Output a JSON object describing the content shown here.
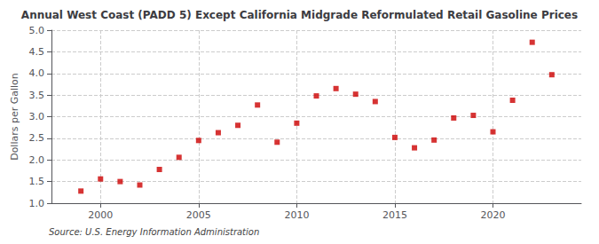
{
  "chart_data": {
    "type": "scatter",
    "title": "Annual West Coast (PADD 5) Except California Midgrade Reformulated Retail Gasoline Prices",
    "ylabel": "Dollars per Gallon",
    "annotations": [
      "Source: U.S. Energy Information Administration"
    ],
    "x": [
      1999,
      2000,
      2001,
      2002,
      2003,
      2004,
      2005,
      2006,
      2007,
      2008,
      2009,
      2010,
      2011,
      2012,
      2013,
      2014,
      2015,
      2016,
      2017,
      2018,
      2019,
      2020,
      2021,
      2022,
      2023
    ],
    "values": [
      1.28,
      1.56,
      1.5,
      1.42,
      1.78,
      2.06,
      2.45,
      2.63,
      2.8,
      3.27,
      2.41,
      2.85,
      3.48,
      3.65,
      3.52,
      3.35,
      2.52,
      2.28,
      2.46,
      2.97,
      3.03,
      2.65,
      3.38,
      4.72,
      3.97
    ],
    "color": "#cc0000",
    "marker": "square",
    "xlim": [
      1997.5,
      2024.5
    ],
    "ylim": [
      1.0,
      5.0
    ],
    "xticks": [
      2000,
      2005,
      2010,
      2015,
      2020
    ],
    "yticks": [
      {
        "value": 1.0,
        "label": "1.0"
      },
      {
        "value": 1.5,
        "label": "1.5"
      },
      {
        "value": 2.0,
        "label": "2.0"
      },
      {
        "value": 2.5,
        "label": "2.5"
      },
      {
        "value": 3.0,
        "label": "3.0"
      },
      {
        "value": 3.5,
        "label": "3.5"
      },
      {
        "value": 4.0,
        "label": "4.0"
      },
      {
        "value": 4.5,
        "label": "4.5"
      },
      {
        "value": 5.0,
        "label": "5.0"
      }
    ],
    "grid": true
  }
}
